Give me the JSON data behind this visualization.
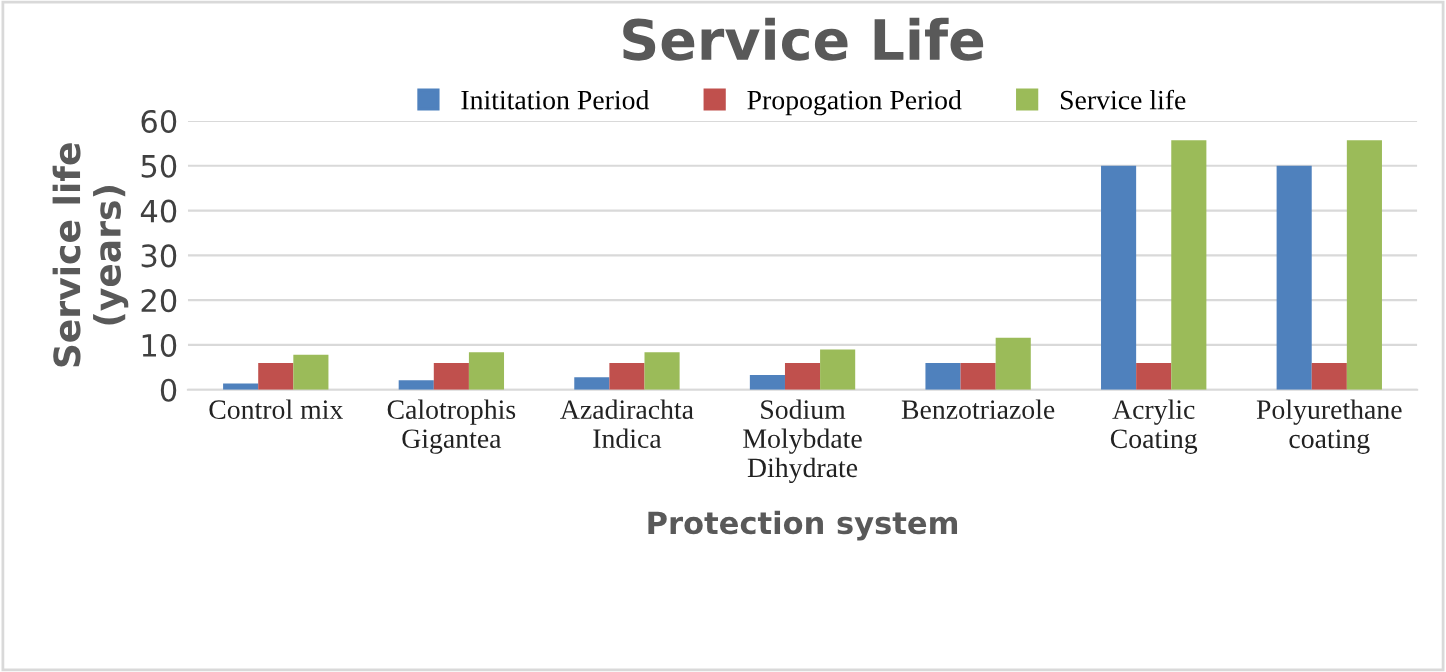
{
  "chart_data": {
    "type": "bar",
    "title": "Service Life",
    "xlabel": "Protection system",
    "ylabel": "Service life\n(years)",
    "categories": [
      "Control mix",
      "Calotrophis\nGigantea",
      "Azadirachta\nIndica",
      "Sodium\nMolybdate\nDihydrate",
      "Benzotriazole",
      "Acrylic\nCoating",
      "Polyurethane\ncoating"
    ],
    "series": [
      {
        "name": "Inititation Period",
        "color": "#4f81bd",
        "values": [
          1.4,
          2.1,
          2.8,
          3.3,
          6,
          50,
          50
        ]
      },
      {
        "name": "Propogation Period",
        "color": "#c0504d",
        "values": [
          6,
          6,
          6,
          6,
          6,
          6,
          6
        ]
      },
      {
        "name": "Service life",
        "color": "#9bbb59",
        "values": [
          7.8,
          8.4,
          8.4,
          9,
          11.6,
          55.7,
          55.7
        ]
      }
    ],
    "ylim": [
      0,
      60
    ],
    "yticks": [
      0,
      10,
      20,
      30,
      40,
      50,
      60
    ],
    "grid": "y",
    "legend": "top"
  }
}
